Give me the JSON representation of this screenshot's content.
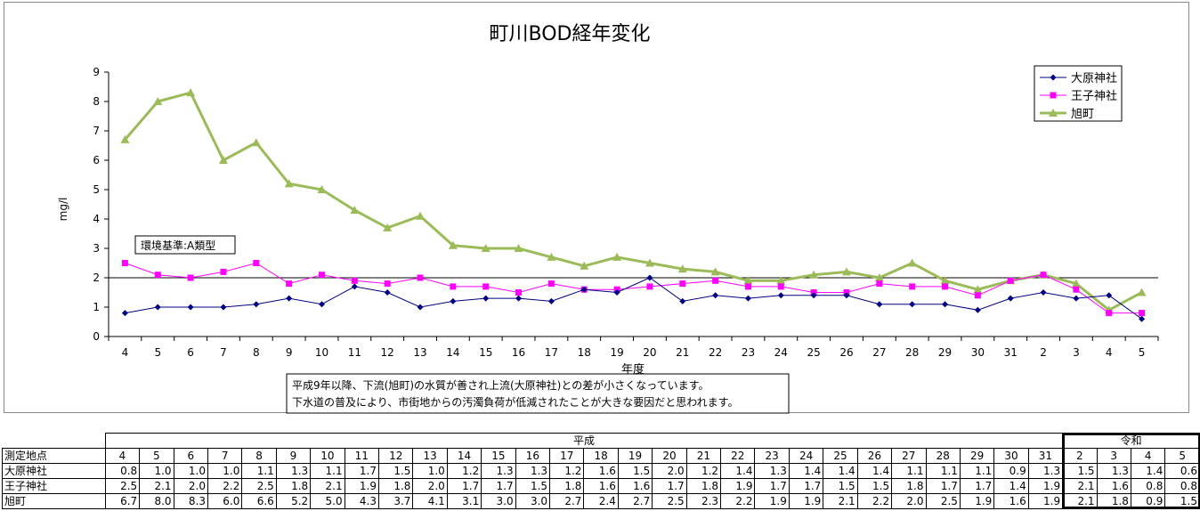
{
  "chart_data": {
    "type": "line",
    "title": "町川BOD経年変化",
    "xlabel": "年度",
    "ylabel": "mg/l",
    "ylim": [
      0,
      9
    ],
    "yticks": [
      0,
      1,
      2,
      3,
      4,
      5,
      6,
      7,
      8,
      9
    ],
    "categories": [
      "4",
      "5",
      "6",
      "7",
      "8",
      "9",
      "10",
      "11",
      "12",
      "13",
      "14",
      "15",
      "16",
      "17",
      "18",
      "19",
      "20",
      "21",
      "22",
      "23",
      "24",
      "25",
      "26",
      "27",
      "28",
      "29",
      "30",
      "31",
      "2",
      "3",
      "4",
      "5"
    ],
    "era_groups": [
      {
        "name": "平成",
        "count": 28
      },
      {
        "name": "令和",
        "count": 4
      }
    ],
    "standard_line": {
      "value": 2,
      "label": "環境基準:A類型"
    },
    "legend_position": "top-right",
    "grid": false,
    "series": [
      {
        "name": "大原神社",
        "marker": "diamond",
        "color": "#000080",
        "values": [
          0.8,
          1.0,
          1.0,
          1.0,
          1.1,
          1.3,
          1.1,
          1.7,
          1.5,
          1.0,
          1.2,
          1.3,
          1.3,
          1.2,
          1.6,
          1.5,
          2.0,
          1.2,
          1.4,
          1.3,
          1.4,
          1.4,
          1.4,
          1.1,
          1.1,
          1.1,
          0.9,
          1.3,
          1.5,
          1.3,
          1.4,
          0.6
        ]
      },
      {
        "name": "王子神社",
        "marker": "square",
        "color": "#FF00FF",
        "values": [
          2.5,
          2.1,
          2.0,
          2.2,
          2.5,
          1.8,
          2.1,
          1.9,
          1.8,
          2.0,
          1.7,
          1.7,
          1.5,
          1.8,
          1.6,
          1.6,
          1.7,
          1.8,
          1.9,
          1.7,
          1.7,
          1.5,
          1.5,
          1.8,
          1.7,
          1.7,
          1.4,
          1.9,
          2.1,
          1.6,
          0.8,
          0.8
        ]
      },
      {
        "name": "旭町",
        "marker": "triangle",
        "color": "#9BBB59",
        "values": [
          6.7,
          8.0,
          8.3,
          6.0,
          6.6,
          5.2,
          5.0,
          4.3,
          3.7,
          4.1,
          3.1,
          3.0,
          3.0,
          2.7,
          2.4,
          2.7,
          2.5,
          2.3,
          2.2,
          1.9,
          1.9,
          2.1,
          2.2,
          2.0,
          2.5,
          1.9,
          1.6,
          1.9,
          2.1,
          1.8,
          0.9,
          1.5
        ]
      }
    ],
    "annotation": [
      "平成9年以降、下流(旭町)の水質が善され上流(大原神社)との差が小さくなっています。",
      "下水道の普及により、市街地からの汚濁負荷が低減されたことが大きな要因だと思われます。"
    ]
  },
  "table": {
    "header_label": "測定地点",
    "row_labels": [
      "大原神社",
      "王子神社",
      "旭町"
    ],
    "values": [
      [
        "0.8",
        "1.0",
        "1.0",
        "1.0",
        "1.1",
        "1.3",
        "1.1",
        "1.7",
        "1.5",
        "1.0",
        "1.2",
        "1.3",
        "1.3",
        "1.2",
        "1.6",
        "1.5",
        "2.0",
        "1.2",
        "1.4",
        "1.3",
        "1.4",
        "1.4",
        "1.4",
        "1.1",
        "1.1",
        "1.1",
        "0.9",
        "1.3",
        "1.5",
        "1.3",
        "1.4",
        "0.6"
      ],
      [
        "2.5",
        "2.1",
        "2.0",
        "2.2",
        "2.5",
        "1.8",
        "2.1",
        "1.9",
        "1.8",
        "2.0",
        "1.7",
        "1.7",
        "1.5",
        "1.8",
        "1.6",
        "1.6",
        "1.7",
        "1.8",
        "1.9",
        "1.7",
        "1.7",
        "1.5",
        "1.5",
        "1.8",
        "1.7",
        "1.7",
        "1.4",
        "1.9",
        "2.1",
        "1.6",
        "0.8",
        "0.8"
      ],
      [
        "6.7",
        "8.0",
        "8.3",
        "6.0",
        "6.6",
        "5.2",
        "5.0",
        "4.3",
        "3.7",
        "4.1",
        "3.1",
        "3.0",
        "3.0",
        "2.7",
        "2.4",
        "2.7",
        "2.5",
        "2.3",
        "2.2",
        "1.9",
        "1.9",
        "2.1",
        "2.2",
        "2.0",
        "2.5",
        "1.9",
        "1.6",
        "1.9",
        "2.1",
        "1.8",
        "0.9",
        "1.5"
      ]
    ]
  }
}
